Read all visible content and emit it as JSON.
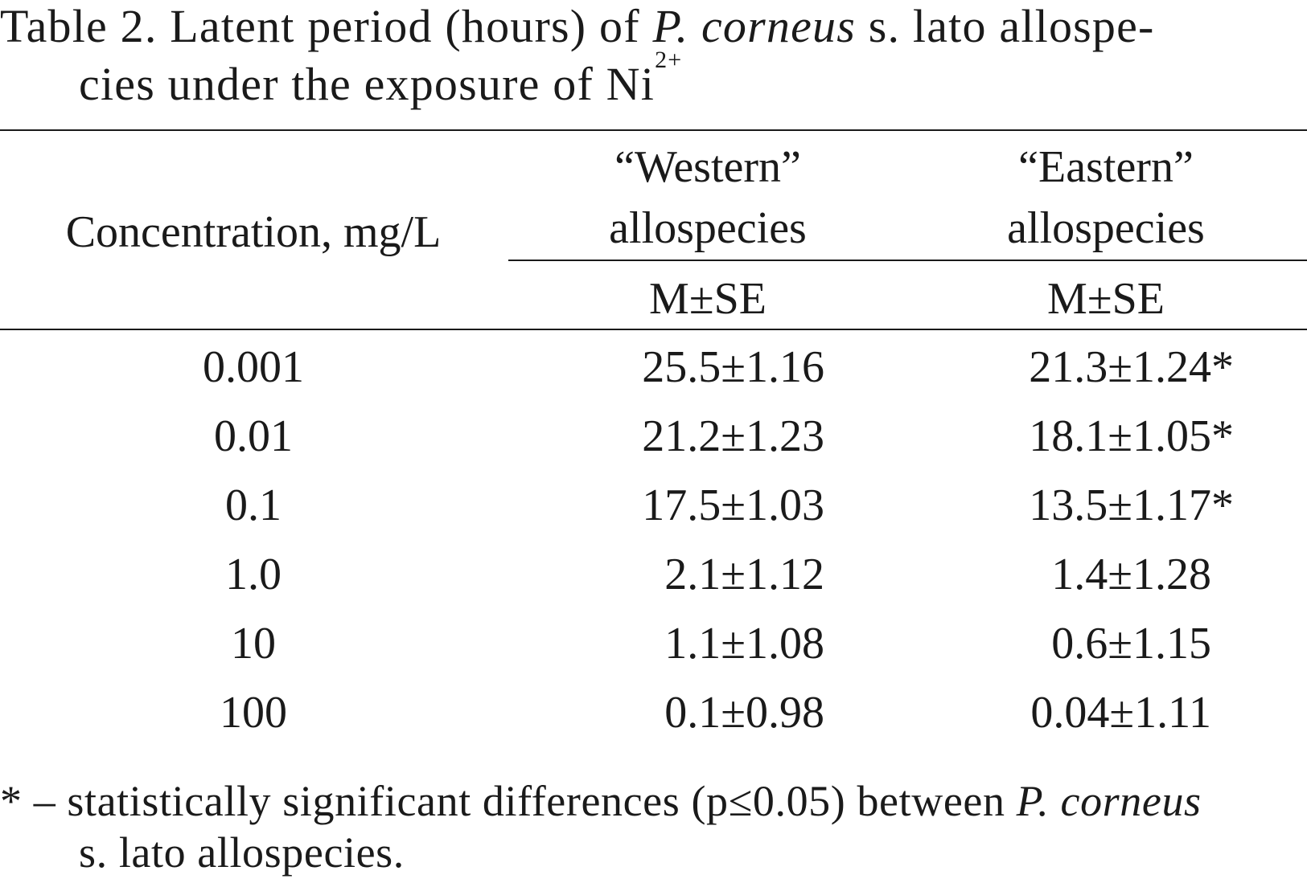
{
  "caption": {
    "prefix": "Table 2. Latent period (hours) of ",
    "species_italic": "P. corneus",
    "middle": " s. lato allospe-",
    "line2_text": "cies under the exposure of Ni",
    "ion_superscript": "2+"
  },
  "table": {
    "header": {
      "concentration": "Concentration, mg/L",
      "western_line1": "“Western”",
      "western_line2": "allospecies",
      "eastern_line1": "“Eastern”",
      "eastern_line2": "allospecies",
      "western_stat": "M±SE",
      "eastern_stat": "M±SE"
    },
    "rows": [
      {
        "concentration": "0.001",
        "western": "25.5±1.16",
        "eastern": "21.3±1.24",
        "eastern_mark": "*"
      },
      {
        "concentration": "0.01",
        "western": "21.2±1.23",
        "eastern": "18.1±1.05",
        "eastern_mark": "*"
      },
      {
        "concentration": "0.1",
        "western": "17.5±1.03",
        "eastern": "13.5±1.17",
        "eastern_mark": "*"
      },
      {
        "concentration": "1.0",
        "western": "2.1±1.12",
        "eastern": "1.4±1.28",
        "eastern_mark": ""
      },
      {
        "concentration": "10",
        "western": "1.1±1.08",
        "eastern": "0.6±1.15",
        "eastern_mark": ""
      },
      {
        "concentration": "100",
        "western": "0.1±0.98",
        "eastern": "0.04±1.11",
        "eastern_mark": ""
      }
    ]
  },
  "footnote": {
    "line1_prefix": "* – statistically significant differences (p≤0.05) between ",
    "line1_italic": "P. corneus",
    "line2": "s. lato allospecies."
  }
}
